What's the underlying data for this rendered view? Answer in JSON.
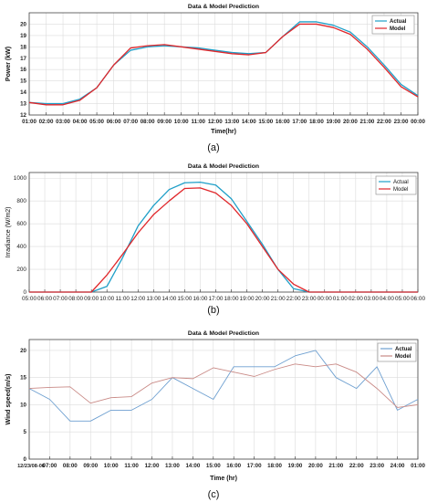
{
  "chart_data": [
    {
      "type": "line",
      "caption": "(a)",
      "title": "Data & Model Prediction",
      "xlabel": "Time(hr)",
      "ylabel": "Power (kW)",
      "ylim": [
        12,
        21
      ],
      "yticks": [
        12,
        13,
        14,
        15,
        16,
        17,
        18,
        19,
        20
      ],
      "grid": true,
      "legend_position": "top-right",
      "categories": [
        "01:00",
        "02:00",
        "03:00",
        "04:00",
        "05:00",
        "06:00",
        "07:00",
        "08:00",
        "09:00",
        "10:00",
        "11:00",
        "12:00",
        "13:00",
        "14:00",
        "15:00",
        "16:00",
        "17:00",
        "18:00",
        "19:00",
        "20:00",
        "21:00",
        "22:00",
        "23:00",
        "00:00"
      ],
      "series": [
        {
          "name": "Actual",
          "color": "#1f9fc8",
          "values": [
            13.1,
            13.0,
            13.0,
            13.4,
            14.4,
            16.4,
            17.7,
            18.0,
            18.1,
            18.0,
            17.9,
            17.7,
            17.5,
            17.4,
            17.5,
            18.9,
            20.2,
            20.2,
            19.9,
            19.3,
            18.0,
            16.4,
            14.7,
            13.7
          ]
        },
        {
          "name": "Model",
          "color": "#e0262a",
          "values": [
            13.1,
            12.9,
            12.9,
            13.3,
            14.4,
            16.4,
            17.9,
            18.1,
            18.2,
            18.0,
            17.8,
            17.6,
            17.4,
            17.3,
            17.5,
            18.9,
            20.0,
            20.0,
            19.7,
            19.1,
            17.8,
            16.2,
            14.5,
            13.6
          ]
        }
      ]
    },
    {
      "type": "line",
      "caption": "(b)",
      "title": "Data & Model Prediction",
      "xlabel": "",
      "ylabel": "Irradiance (W/m2)",
      "ylim": [
        0,
        1050
      ],
      "yticks": [
        0,
        200,
        400,
        600,
        800,
        1000
      ],
      "grid": true,
      "legend_position": "top-right",
      "categories": [
        "05:00",
        "06:00",
        "07:00",
        "08:00",
        "09:00",
        "10:00",
        "11:00",
        "12:00",
        "13:00",
        "14:00",
        "15:00",
        "16:00",
        "17:00",
        "18:00",
        "19:00",
        "20:00",
        "21:00",
        "22:00",
        "23:00",
        "00:00",
        "01:00",
        "02:00",
        "03:00",
        "04:00",
        "05:00",
        "06:00"
      ],
      "series": [
        {
          "name": "Actual",
          "color": "#1f9fc8",
          "values": [
            0,
            0,
            0,
            0,
            0,
            50,
            300,
            580,
            760,
            900,
            960,
            965,
            940,
            820,
            620,
            420,
            200,
            30,
            0,
            0,
            0,
            0,
            0,
            0,
            0,
            0
          ]
        },
        {
          "name": "Model",
          "color": "#e0262a",
          "values": [
            0,
            0,
            0,
            0,
            0,
            150,
            330,
            520,
            680,
            800,
            910,
            915,
            870,
            760,
            600,
            400,
            200,
            70,
            0,
            0,
            0,
            0,
            0,
            0,
            0,
            0
          ]
        }
      ]
    },
    {
      "type": "line",
      "caption": "(c)",
      "title": "Data & Model Prediction",
      "xlabel": "Time (hr)",
      "ylabel": "Wind speed(m/s)",
      "ylim": [
        0,
        22
      ],
      "yticks": [
        0,
        5,
        10,
        15,
        20
      ],
      "grid": true,
      "legend_position": "top-right",
      "categories": [
        "12/23/08-06",
        "07:00",
        "08:00",
        "09:00",
        "10:00",
        "11:00",
        "12:00",
        "13:00",
        "14:00",
        "15:00",
        "16:00",
        "17:00",
        "18:00",
        "19:00",
        "20:00",
        "21:00",
        "22:00",
        "23:00",
        "24:00",
        "01:00"
      ],
      "series": [
        {
          "name": "Actual",
          "color": "#6d9fd0",
          "values": [
            13,
            11,
            7,
            7,
            9,
            9,
            11,
            15,
            13,
            11,
            17,
            17,
            17,
            19,
            20,
            15,
            13,
            17,
            9,
            11
          ]
        },
        {
          "name": "Model",
          "color": "#c98a86",
          "values": [
            13,
            13.2,
            13.3,
            10.3,
            11.3,
            11.5,
            14,
            15,
            14.8,
            16.8,
            16,
            15.2,
            16.5,
            17.5,
            17,
            17.5,
            16,
            13,
            9.5,
            10
          ]
        }
      ]
    }
  ]
}
